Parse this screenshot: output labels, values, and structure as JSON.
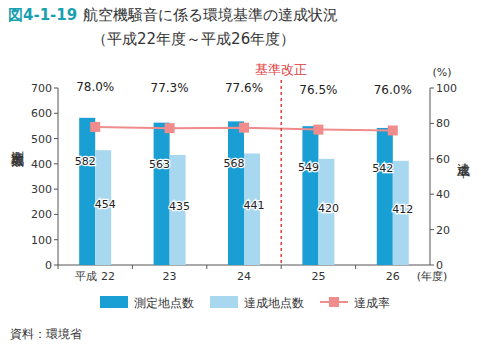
{
  "chart_data": {
    "type": "bar",
    "title": "図4-1-19　航空機騒音に係る環境基準の達成状況",
    "subtitle": "（平成22年度～平成26年度）",
    "categories": [
      "平成 22",
      "23",
      "24",
      "25",
      "26"
    ],
    "x_label": "(年度)",
    "y_label": "測定地点数",
    "y2_label": "達成率",
    "y2_unit": "(%)",
    "source": "資料：環境省",
    "annotations": [
      {
        "text": "基準改正",
        "between": [
          "24",
          "25"
        ]
      }
    ],
    "ylim": [
      0,
      700
    ],
    "yticks": [
      0,
      100,
      200,
      300,
      400,
      500,
      600,
      700
    ],
    "y2lim": [
      0,
      100
    ],
    "y2ticks": [
      0,
      20,
      40,
      60,
      80,
      100
    ],
    "grid": false,
    "legend": "bottom",
    "data_labels": true,
    "series": [
      {
        "name": "測定地点数",
        "type": "bar",
        "color": "#1a9fd4",
        "values": [
          582,
          563,
          568,
          549,
          542
        ]
      },
      {
        "name": "達成地点数",
        "type": "bar",
        "color": "#a8d8ef",
        "values": [
          454,
          435,
          441,
          420,
          412
        ]
      },
      {
        "name": "達成率",
        "type": "line",
        "axis": "y2",
        "color": "#f08c8c",
        "marker": "square",
        "values": [
          78.0,
          77.3,
          77.6,
          76.5,
          76.0
        ],
        "value_labels": [
          "78.0%",
          "77.3%",
          "77.6%",
          "76.5%",
          "76.0%"
        ]
      }
    ]
  }
}
